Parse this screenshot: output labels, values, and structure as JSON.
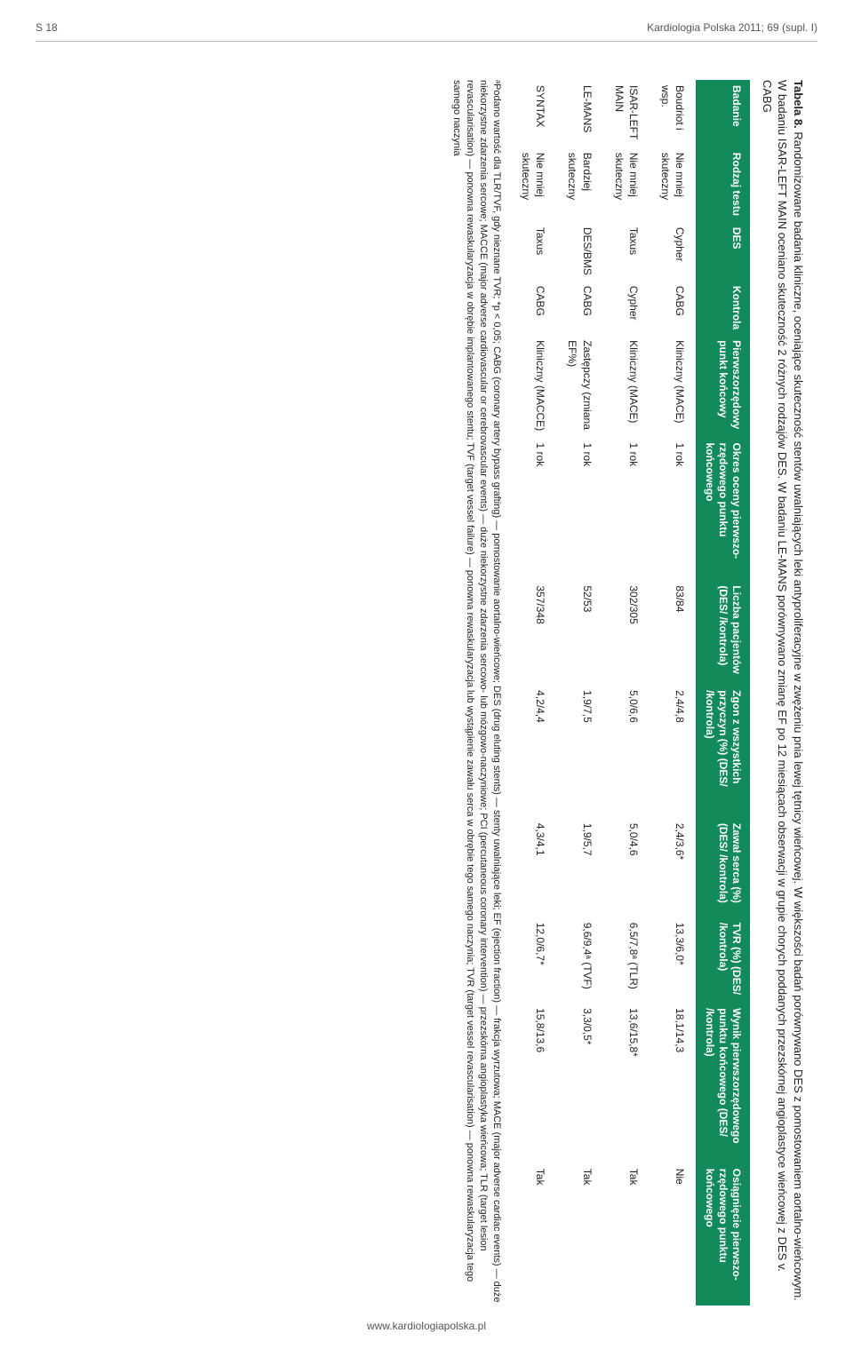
{
  "runhead": {
    "left": "S 18",
    "right": "Kardiologia Polska 2011; 69 (supl. I)"
  },
  "caption": {
    "label": "Tabela 8.",
    "text": "Randomizowane badania kliniczne, oceniające skuteczność stentów uwalniających leki antyproliferacyjne w zwężeniu pnia lewej tętnicy wieńcowej. W większości badań porównywano DES z pomostowaniem aortalno-wieńcowym. W badaniu ISAR-LEFT MAIN oceniano skuteczność 2 różnych rodzajów DES. W badaniu LE-MANS porównywano zmianę EF po 12 miesiącach obserwacji w grupie chorych poddanych przezskórnej angioplastyce wieńcowej z DES v. CABG"
  },
  "table": {
    "header_bg": "#128a5a",
    "header_fg": "#ffffff",
    "columns": [
      "Badanie",
      "Rodzaj testu",
      "DES",
      "Kontrola",
      "Pierwszo­rzędowy punkt końcowy",
      "Okres oceny pierwszo­rzędowego punktu końcowego",
      "Liczba pacjentów (DES/ /kontrola)",
      "Zgon z wszystkich przyczyn (%) (DES/ /kontrola)",
      "Zawał serca (%) (DES/ /kontrola)",
      "TVR (%) (DES/ /kontrola)",
      "Wynik pierwszo­rzędowego punktu końcowego (DES/ /kontrola)",
      "Osiągnięcie pierwszo­rzędowego punktu końcowego"
    ],
    "rows": [
      {
        "c0": "Boudriot i wsp.",
        "c1": "Nie mniej skuteczny",
        "c2": "Cypher",
        "c3": "CABG",
        "c4": "Kliniczny (MACE)",
        "c5": "1 rok",
        "c6": "83/84",
        "c7": "2,4/4,8",
        "c8": "2,4/3,6*",
        "c9": "13,3/6,0*",
        "c10": "18,1/14,3",
        "c11": "Nie"
      },
      {
        "c0": "ISAR-LEFT MAIN",
        "c1": "Nie mniej skuteczny",
        "c2": "Taxus",
        "c3": "Cypher",
        "c4": "Kliniczny (MACE)",
        "c5": "1 rok",
        "c6": "302/305",
        "c7": "5,0/6,6",
        "c8": "5,0/4,6",
        "c9": "6,5/7,8ᵃ (TLR)",
        "c10": "13,6/15,8*",
        "c11": "Tak"
      },
      {
        "c0": "LE-MANS",
        "c1": "Bardziej skuteczny",
        "c2": "DES/BMS",
        "c3": "CABG",
        "c4": "Zastępczy (zmiana EF%)",
        "c5": "1 rok",
        "c6": "52/53",
        "c7": "1,9/7,5",
        "c8": "1,9/5,7",
        "c9": "9,6/9,4ᵃ (TVF)",
        "c10": "3,3/0,5*",
        "c11": "Tak"
      },
      {
        "c0": "SYNTAX",
        "c1": "Nie mniej skuteczny",
        "c2": "Taxus",
        "c3": "CABG",
        "c4": "Kliniczny (MACCE)",
        "c5": "1 rok",
        "c6": "357/348",
        "c7": "4,2/4,4",
        "c8": "4,3/4,1",
        "c9": "12,0/6,7*",
        "c10": "15,8/13,6",
        "c11": "Tak"
      }
    ]
  },
  "footnote": "ᵃPodano wartość dla TLR/TVF, gdy nieznane TVR; *p < 0,05; CABG (coronary artery bypass grafting) — pomostowanie aortalno-wieńcowe; DES (drug eluting stents) — stenty uwalniające leki; EF (ejection fraction) — frakcja wyrzutowa; MACE (major adverse cardiac events) — duże niekorzystne zdarzenia sercowe; MACCE (major adverse cardiovascular or cerebrovascular events) — duże niekorzystne zdarzenia sercowo- lub mózgowo-naczyniowe; PCI (percutaneous coronary intervention) — przezskórna angioplastyka wieńcowa; TLR (target lesion revascularisation) — ponowna rewaskularyzacja w obrębie implantowanego stentu; TVF (target vessel failure) — ponowna rewaskularyzacja lub wystąpienie zawału serca w obrębie tego samego naczynia; TVR (target vessel revascularisation) — ponowna rewaskularyzacja tego samego naczynia",
  "footer": "www.kardiologiapolska.pl"
}
